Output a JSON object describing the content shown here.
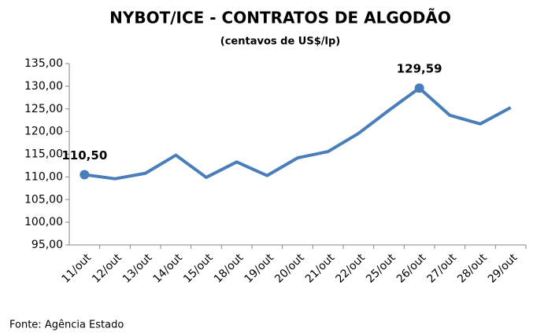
{
  "chart_data": {
    "type": "line",
    "title": "NYBOT/ICE - CONTRATOS DE ALGODÃO",
    "subtitle": "(centavos de US$/lp)",
    "source": "Fonte: Agência Estado",
    "categories": [
      "11/out",
      "12/out",
      "13/out",
      "14/out",
      "15/out",
      "18/out",
      "19/out",
      "20/out",
      "21/out",
      "22/out",
      "25/out",
      "26/out",
      "27/out",
      "28/out",
      "29/out"
    ],
    "series": [
      {
        "name": "NYBOT/ICE",
        "color": "#4a7ebb",
        "values": [
          110.5,
          109.6,
          110.8,
          114.8,
          109.9,
          113.3,
          110.3,
          114.2,
          115.6,
          119.6,
          124.7,
          129.59,
          123.6,
          121.7,
          125.3
        ],
        "value_labels": [
          "110,50",
          null,
          null,
          null,
          null,
          null,
          null,
          null,
          null,
          null,
          null,
          "129,59",
          null,
          null,
          null
        ]
      }
    ],
    "ylim": [
      95,
      135
    ],
    "yticks": [
      {
        "value": 95,
        "label": "95,00"
      },
      {
        "value": 100,
        "label": "100,00"
      },
      {
        "value": 105,
        "label": "105,00"
      },
      {
        "value": 110,
        "label": "110,00"
      },
      {
        "value": 115,
        "label": "115,00"
      },
      {
        "value": 120,
        "label": "120,00"
      },
      {
        "value": 125,
        "label": "125,00"
      },
      {
        "value": 130,
        "label": "130,00"
      },
      {
        "value": 135,
        "label": "135,00"
      }
    ],
    "grid": false
  }
}
